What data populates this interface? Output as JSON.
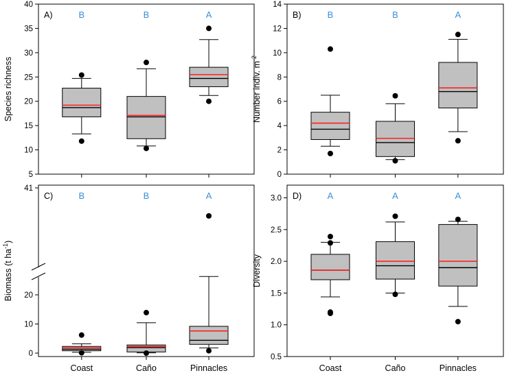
{
  "colors": {
    "box_fill": "#c0c0c0",
    "mean_line": "#ff2020",
    "median_line": "#000000",
    "letter": "#3a8fd8",
    "text": "#000000"
  },
  "chart_data": [
    {
      "type": "box",
      "panel": "A)",
      "ylabel": "Species richness",
      "ylim": [
        5,
        40
      ],
      "yticks": [
        5,
        10,
        15,
        20,
        25,
        30,
        35,
        40
      ],
      "categories": [
        "Coast",
        "Caño",
        "Pinnacles"
      ],
      "show_xlabels": false,
      "letters": [
        "B",
        "B",
        "A"
      ],
      "boxes": [
        {
          "whisker_low": 13.3,
          "q1": 16.8,
          "median": 18.7,
          "mean": 19.2,
          "q3": 22.7,
          "whisker_high": 24.7,
          "outliers": [
            25.4,
            11.8
          ]
        },
        {
          "whisker_low": 10.8,
          "q1": 12.3,
          "median": 16.8,
          "mean": 17.1,
          "q3": 21.0,
          "whisker_high": 26.7,
          "outliers": [
            28.0,
            10.3
          ]
        },
        {
          "whisker_low": 21.2,
          "q1": 23.0,
          "median": 24.7,
          "mean": 25.5,
          "q3": 27.0,
          "whisker_high": 32.7,
          "outliers": [
            35.0,
            20.0
          ]
        }
      ]
    },
    {
      "type": "box",
      "panel": "B)",
      "ylabel": "Number indiv. m",
      "ylabel_sup": "-2",
      "ylim": [
        0,
        14
      ],
      "yticks": [
        0,
        2,
        4,
        6,
        8,
        10,
        12,
        14
      ],
      "categories": [
        "Coast",
        "Caño",
        "Pinnacles"
      ],
      "show_xlabels": false,
      "letters": [
        "B",
        "B",
        "A"
      ],
      "boxes": [
        {
          "whisker_low": 2.3,
          "q1": 2.85,
          "median": 3.7,
          "mean": 4.2,
          "q3": 5.1,
          "whisker_high": 6.5,
          "outliers": [
            10.3,
            1.7
          ]
        },
        {
          "whisker_low": 1.2,
          "q1": 1.45,
          "median": 2.6,
          "mean": 2.95,
          "q3": 4.35,
          "whisker_high": 5.8,
          "outliers": [
            6.45,
            1.1
          ]
        },
        {
          "whisker_low": 3.5,
          "q1": 5.45,
          "median": 6.8,
          "mean": 7.1,
          "q3": 9.2,
          "whisker_high": 11.1,
          "outliers": [
            11.5,
            2.75
          ]
        }
      ]
    },
    {
      "type": "box",
      "panel": "C)",
      "ylabel": "Biomass (t ha",
      "ylabel_sup": "-1",
      "ylabel_end": ")",
      "broken_axis": true,
      "ylim": [
        0,
        41
      ],
      "yticks": [
        0,
        10,
        20
      ],
      "top_tick": 41,
      "categories": [
        "Coast",
        "Caño",
        "Pinnacles"
      ],
      "show_xlabels": true,
      "letters": [
        "B",
        "B",
        "A"
      ],
      "boxes": [
        {
          "whisker_low": 0.3,
          "q1": 0.8,
          "median": 1.3,
          "mean": 1.8,
          "q3": 2.3,
          "whisker_high": 3.2,
          "outliers": [
            6.2,
            0.1
          ]
        },
        {
          "whisker_low": 0.1,
          "q1": 0.4,
          "median": 1.9,
          "mean": 2.3,
          "q3": 2.8,
          "whisker_high": 10.4,
          "outliers": [
            13.9,
            0.0
          ]
        },
        {
          "whisker_low": 1.8,
          "q1": 3.0,
          "median": 4.4,
          "mean": 7.6,
          "q3": 9.2,
          "whisker_high": 25.2,
          "outliers": [
            36.0,
            0.8
          ]
        }
      ]
    },
    {
      "type": "box",
      "panel": "D)",
      "ylabel": "Diversity",
      "ylim": [
        0.5,
        3.2
      ],
      "yticks": [
        0.5,
        1.0,
        1.5,
        2.0,
        2.5,
        3.0
      ],
      "tick_decimals": 1,
      "categories": [
        "Coast",
        "Caño",
        "Pinnacles"
      ],
      "show_xlabels": true,
      "letters": [
        "A",
        "A",
        "A"
      ],
      "boxes": [
        {
          "whisker_low": 1.44,
          "q1": 1.71,
          "median": 1.86,
          "mean": 1.86,
          "q3": 2.11,
          "whisker_high": 2.3,
          "outliers": [
            2.39,
            2.29,
            1.2,
            1.18
          ]
        },
        {
          "whisker_low": 1.5,
          "q1": 1.72,
          "median": 1.93,
          "mean": 2.0,
          "q3": 2.31,
          "whisker_high": 2.62,
          "outliers": [
            2.71,
            1.48
          ]
        },
        {
          "whisker_low": 1.29,
          "q1": 1.61,
          "median": 1.9,
          "mean": 2.0,
          "q3": 2.58,
          "whisker_high": 2.63,
          "outliers": [
            2.66,
            1.05
          ]
        }
      ]
    }
  ]
}
